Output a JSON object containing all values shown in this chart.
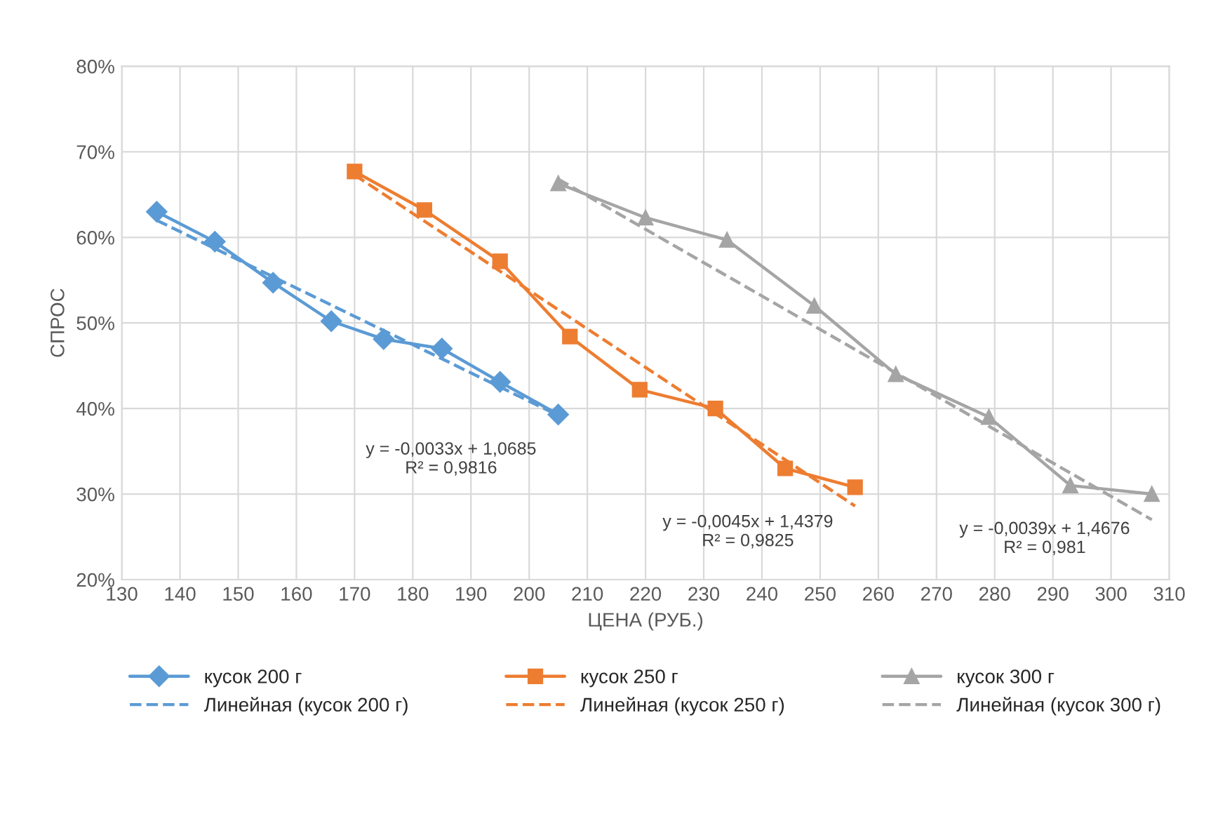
{
  "chart_data": {
    "type": "line",
    "xlabel": "ЦЕНА (РУБ.)",
    "ylabel": "СПРОС",
    "xlim": [
      130,
      310
    ],
    "xticks": [
      130,
      140,
      150,
      160,
      170,
      180,
      190,
      200,
      210,
      220,
      230,
      240,
      250,
      260,
      270,
      280,
      290,
      300,
      310
    ],
    "ylim": [
      0.2,
      0.8
    ],
    "yticks": [
      {
        "value": 0.2,
        "label": "20%"
      },
      {
        "value": 0.3,
        "label": "30%"
      },
      {
        "value": 0.4,
        "label": "40%"
      },
      {
        "value": 0.5,
        "label": "50%"
      },
      {
        "value": 0.6,
        "label": "60%"
      },
      {
        "value": 0.7,
        "label": "70%"
      },
      {
        "value": 0.8,
        "label": "80%"
      }
    ],
    "grid": true,
    "legend": "bottom",
    "series": [
      {
        "name": "кусок 200 г",
        "color": "#5b9bd5",
        "marker": "diamond",
        "line_style": "solid",
        "x": [
          136,
          146,
          156,
          166,
          175,
          185,
          195,
          205
        ],
        "values": [
          0.63,
          0.595,
          0.547,
          0.502,
          0.481,
          0.47,
          0.431,
          0.393
        ]
      },
      {
        "name": "кусок 250 г",
        "color": "#ed7d31",
        "marker": "square",
        "line_style": "solid",
        "x": [
          170,
          182,
          195,
          207,
          219,
          232,
          244,
          256
        ],
        "values": [
          0.677,
          0.632,
          0.572,
          0.484,
          0.422,
          0.4,
          0.33,
          0.308
        ]
      },
      {
        "name": "кусок 300 г",
        "color": "#a5a5a5",
        "marker": "triangle",
        "line_style": "solid",
        "x": [
          205,
          220,
          234,
          249,
          263,
          279,
          293,
          307
        ],
        "values": [
          0.663,
          0.623,
          0.597,
          0.52,
          0.44,
          0.39,
          0.31,
          0.3
        ]
      },
      {
        "name": "Линейная (кусок 200 г)",
        "color": "#5b9bd5",
        "marker": "none",
        "line_style": "dashed",
        "x": [
          136,
          205
        ],
        "values": [
          0.62,
          0.392
        ]
      },
      {
        "name": "Линейная (кусок 250 г)",
        "color": "#ed7d31",
        "marker": "none",
        "line_style": "dashed",
        "x": [
          170,
          256
        ],
        "values": [
          0.673,
          0.286
        ]
      },
      {
        "name": "Линейная (кусок 300 г)",
        "color": "#a5a5a5",
        "marker": "none",
        "line_style": "dashed",
        "x": [
          205,
          307
        ],
        "values": [
          0.668,
          0.27
        ]
      }
    ],
    "annotations": [
      "y = -0,0033x + 1,0685\nR² = 0,9816",
      "y = -0,0045x + 1,4379\nR² = 0,9825",
      "y = -0,0039x + 1,4676\nR² = 0,981"
    ]
  }
}
